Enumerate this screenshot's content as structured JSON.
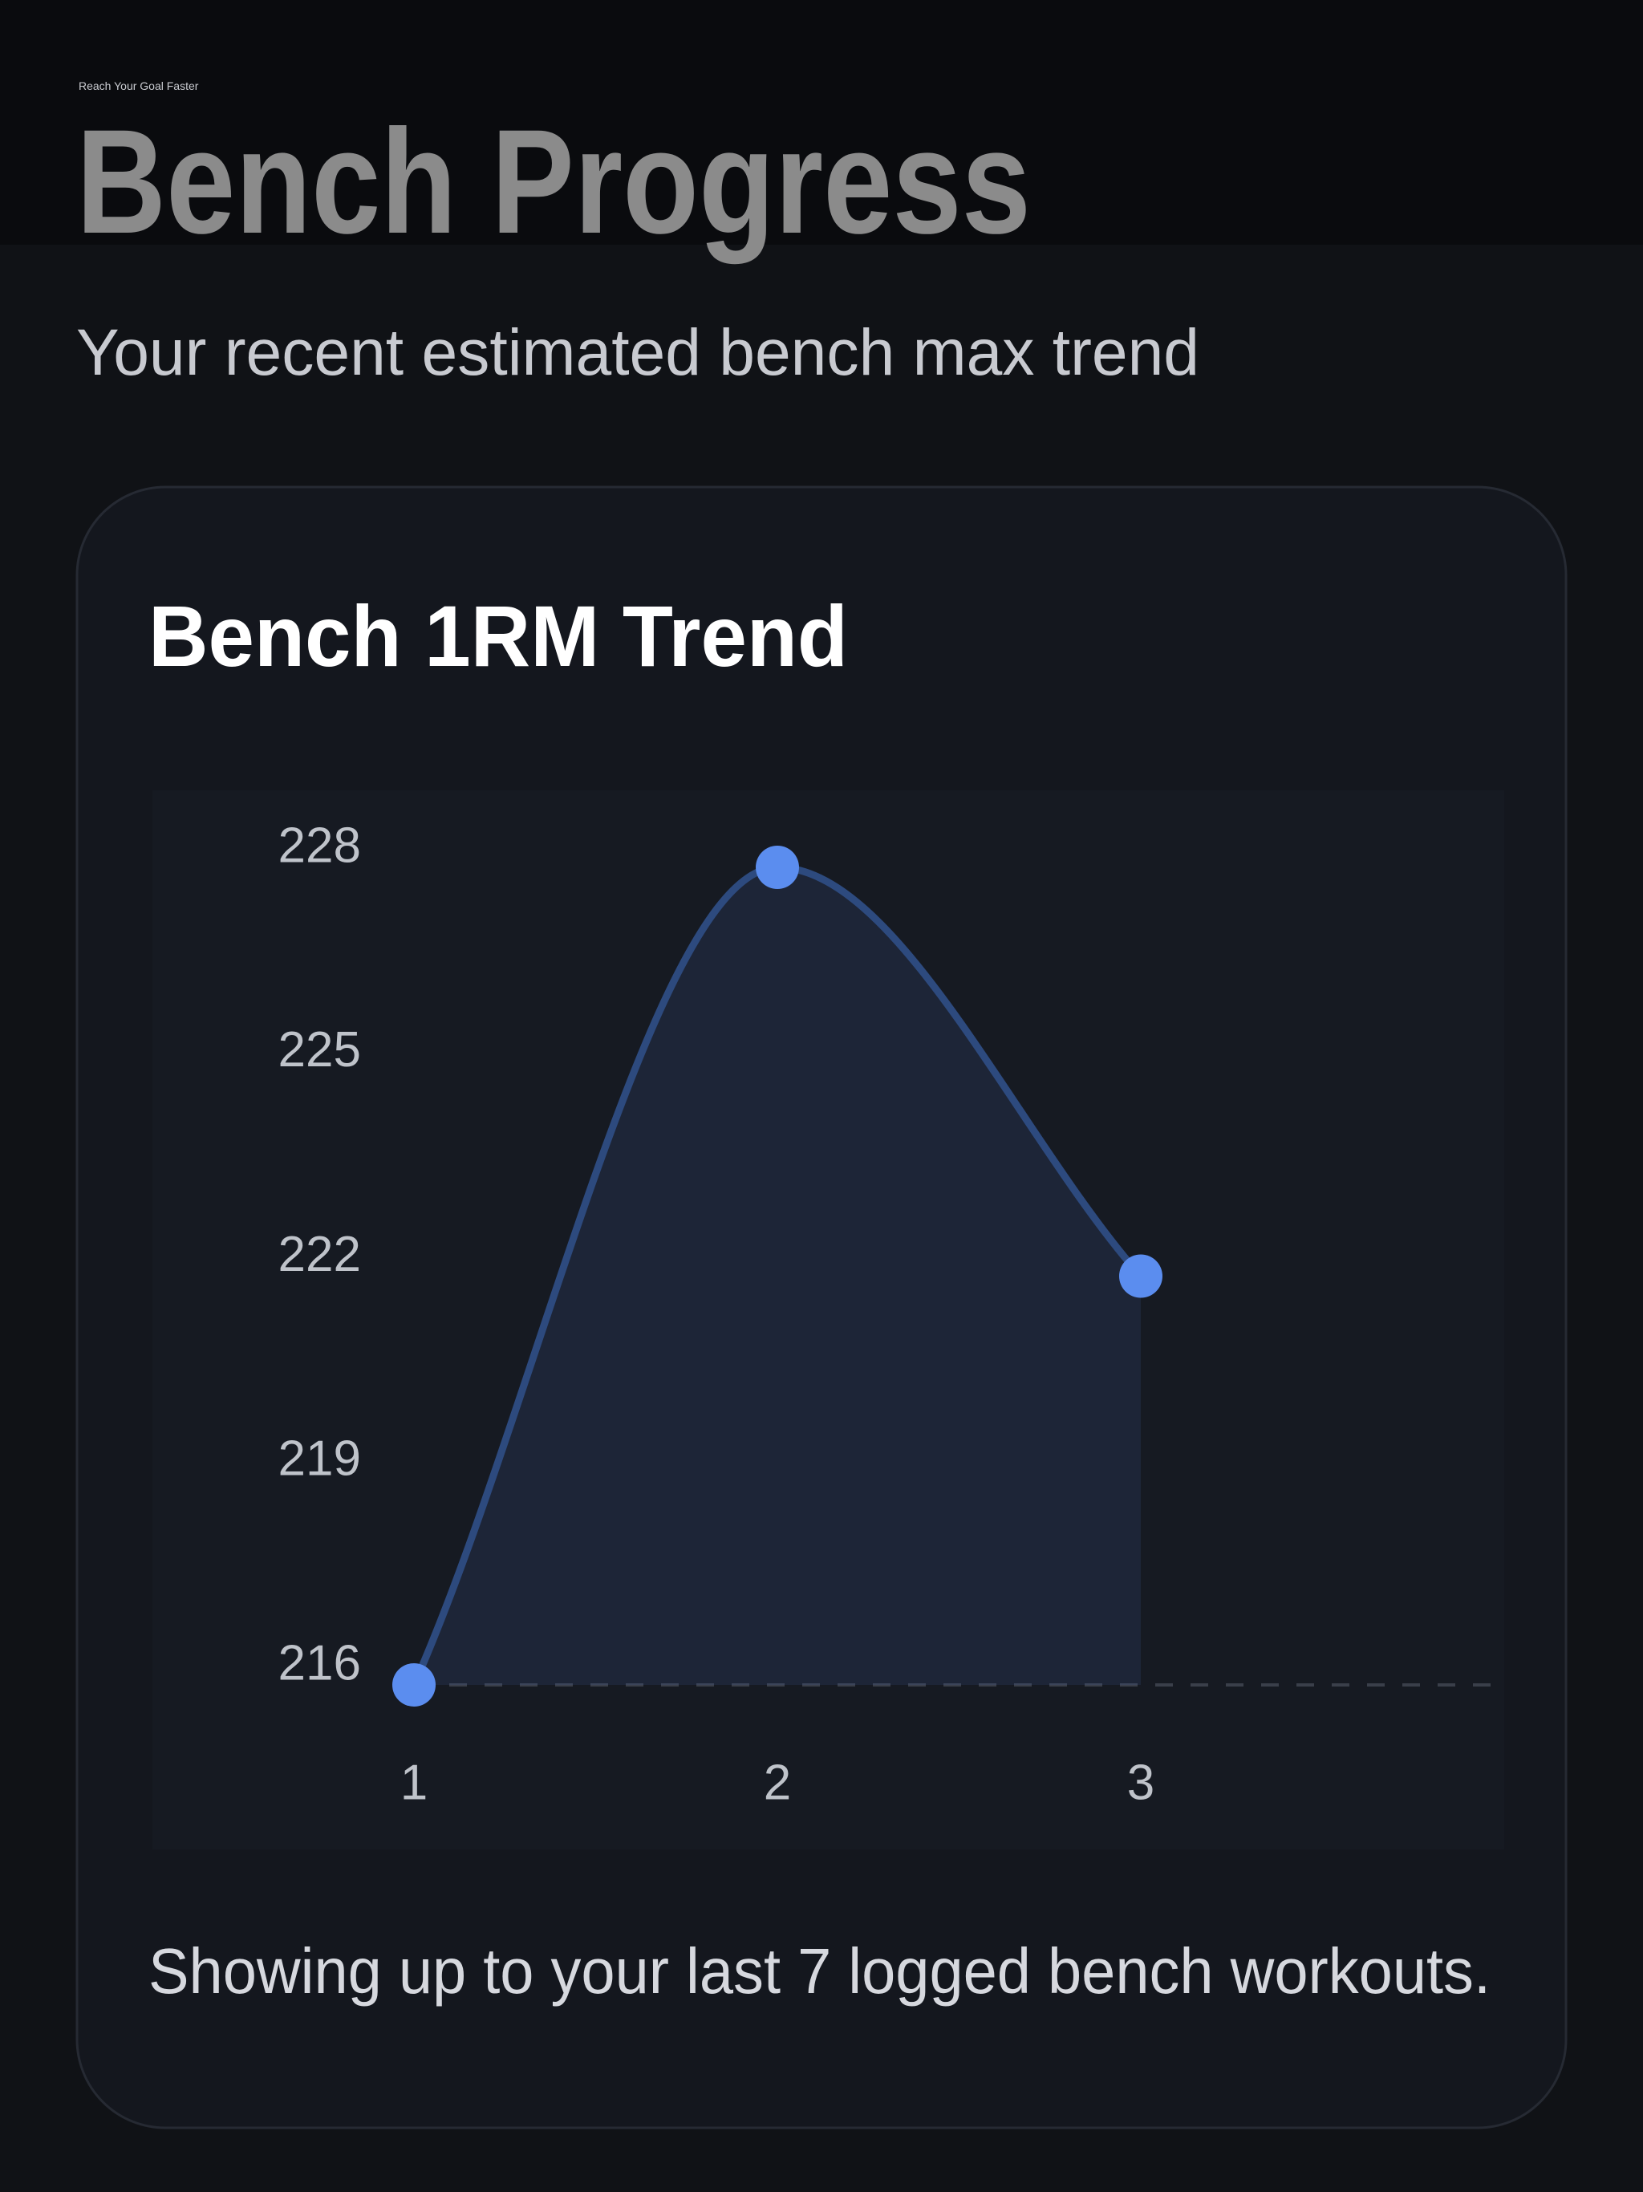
{
  "header": {
    "eyebrow": "Reach Your Goal Faster",
    "title": "Bench Progress",
    "subtitle": "Your recent estimated bench max trend"
  },
  "chart_data": {
    "type": "line",
    "title": "Bench 1RM Trend",
    "x": [
      1,
      2,
      3
    ],
    "values": [
      216,
      228,
      222
    ],
    "color": "#5b8def",
    "xlim": [
      1,
      4
    ],
    "xticks": [
      1,
      2,
      3
    ],
    "ylim": [
      216,
      228
    ],
    "yticks": [
      216,
      219,
      222,
      225,
      228
    ],
    "grid": false
  },
  "footer": "Showing up to your last 7 logged bench workouts."
}
